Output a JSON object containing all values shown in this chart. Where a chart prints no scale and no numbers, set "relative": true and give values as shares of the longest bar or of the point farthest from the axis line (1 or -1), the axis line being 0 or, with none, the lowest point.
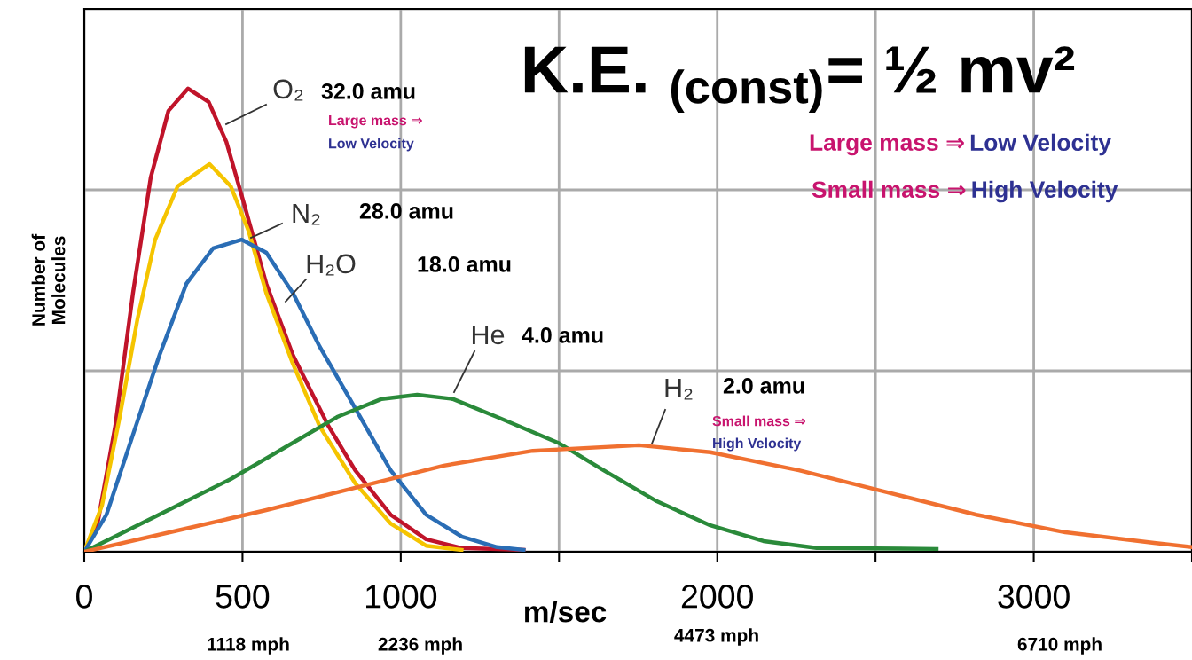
{
  "chart_data": {
    "type": "line",
    "title": "K.E. $_{(const)}$= ½ mv²",
    "xlabel": "m/sec",
    "ylabel": "Number of\nMolecules",
    "relative": true,
    "xlim": [
      0,
      3500
    ],
    "xticks": [
      0,
      500,
      1000,
      {
        "value": 1500,
        "label": null
      },
      2000,
      {
        "value": 2500,
        "label": null
      },
      3000,
      {
        "value": 3500,
        "label": null
      }
    ],
    "tick_labels": "x",
    "grid": true,
    "legend": false,
    "marker": "none",
    "line_style": "solid",
    "series": [
      {
        "name": "O₂",
        "color": "#c0142a",
        "x": [
          0,
          42,
          98,
          154,
          210,
          266,
          328,
          393,
          449,
          505,
          575,
          659,
          771,
          856,
          968,
          1080,
          1192,
          1388
        ],
        "values": [
          0,
          0.061,
          0.272,
          0.559,
          0.808,
          0.952,
          1.0,
          0.971,
          0.885,
          0.751,
          0.579,
          0.425,
          0.272,
          0.176,
          0.08,
          0.027,
          0.008,
          0.004
        ]
      },
      {
        "name": "N₂",
        "color": "#f5c400",
        "x": [
          0,
          56,
          112,
          168,
          224,
          295,
          396,
          463,
          519,
          575,
          659,
          743,
          856,
          968,
          1080,
          1192
        ],
        "values": [
          0,
          0.1,
          0.291,
          0.502,
          0.674,
          0.789,
          0.837,
          0.789,
          0.693,
          0.559,
          0.406,
          0.272,
          0.148,
          0.061,
          0.013,
          0.004
        ]
      },
      {
        "name": "H₂O",
        "color": "#2a6db5",
        "x": [
          0,
          70,
          154,
          238,
          323,
          407,
          497,
          575,
          659,
          743,
          856,
          968,
          1080,
          1192,
          1304,
          1388
        ],
        "values": [
          0,
          0.08,
          0.253,
          0.425,
          0.579,
          0.655,
          0.674,
          0.646,
          0.559,
          0.444,
          0.31,
          0.176,
          0.08,
          0.033,
          0.01,
          0.004
        ]
      },
      {
        "name": "He",
        "color": "#2a8a3a",
        "x": [
          0,
          154,
          295,
          463,
          631,
          799,
          940,
          1052,
          1164,
          1304,
          1501,
          1641,
          1809,
          1978,
          2146,
          2314,
          2693
        ],
        "values": [
          0,
          0.052,
          0.1,
          0.157,
          0.224,
          0.291,
          0.33,
          0.339,
          0.33,
          0.291,
          0.234,
          0.176,
          0.109,
          0.057,
          0.023,
          0.008,
          0.006
        ]
      },
      {
        "name": "H₂",
        "color": "#f07030",
        "x": [
          0,
          295,
          575,
          856,
          1136,
          1417,
          1753,
          1978,
          2258,
          2539,
          2819,
          3100,
          3380,
          3500
        ],
        "values": [
          0,
          0.046,
          0.09,
          0.138,
          0.186,
          0.218,
          0.23,
          0.215,
          0.176,
          0.128,
          0.08,
          0.042,
          0.019,
          0.01
        ]
      }
    ],
    "annotations": [
      "32.0 amu",
      "28.0 amu",
      "18.0 amu",
      "4.0 amu",
      "2.0 amu",
      "Large mass ⇒",
      "Low Velocity",
      "Large mass ⇒",
      "Low Velocity",
      "Small mass ⇒",
      "High Velocity",
      "Small mass ⇒",
      "High Velocity",
      "1118 mph",
      "2236 mph",
      "4473 mph",
      "6710 mph"
    ]
  }
}
